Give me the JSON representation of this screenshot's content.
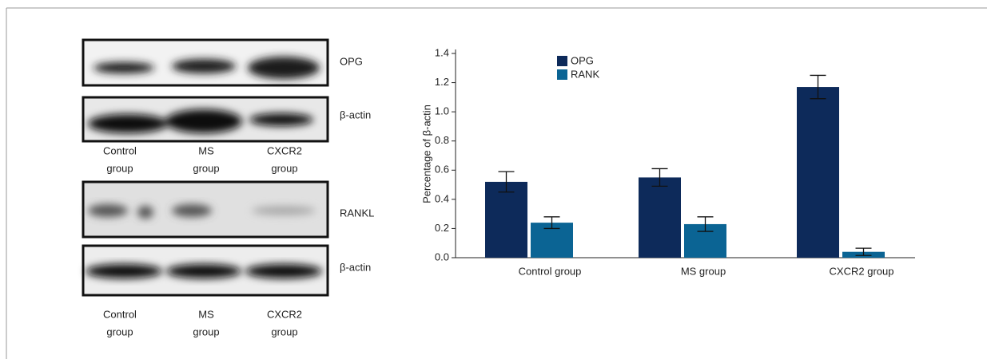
{
  "blot_top": {
    "rows": [
      "OPG",
      "β-actin"
    ],
    "lanes": [
      [
        "Control",
        "group"
      ],
      [
        "MS",
        "group"
      ],
      [
        "CXCR2",
        "group"
      ]
    ]
  },
  "blot_bottom": {
    "rows": [
      "RANKL",
      "β-actin"
    ],
    "lanes": [
      [
        "Control",
        "group"
      ],
      [
        "MS",
        "group"
      ],
      [
        "CXCR2",
        "group"
      ]
    ]
  },
  "chart_data": {
    "type": "bar",
    "y_label": "Percentage of β-actin",
    "categories": [
      "Control group",
      "MS group",
      "CXCR2 group"
    ],
    "series": [
      {
        "name": "OPG",
        "color": "#0d2a5a",
        "values": [
          0.52,
          0.55,
          1.17
        ],
        "errors": [
          0.07,
          0.06,
          0.08
        ]
      },
      {
        "name": "RANK",
        "color": "#0b6494",
        "values": [
          0.24,
          0.23,
          0.04
        ],
        "errors": [
          0.04,
          0.05,
          0.025
        ]
      }
    ],
    "ylim": [
      0,
      1.4
    ],
    "yticks": [
      {
        "value": 0,
        "label": "0.0"
      },
      0.2,
      0.4,
      0.6,
      0.8,
      {
        "value": 1,
        "label": "1.0"
      },
      1.2,
      1.4
    ]
  }
}
